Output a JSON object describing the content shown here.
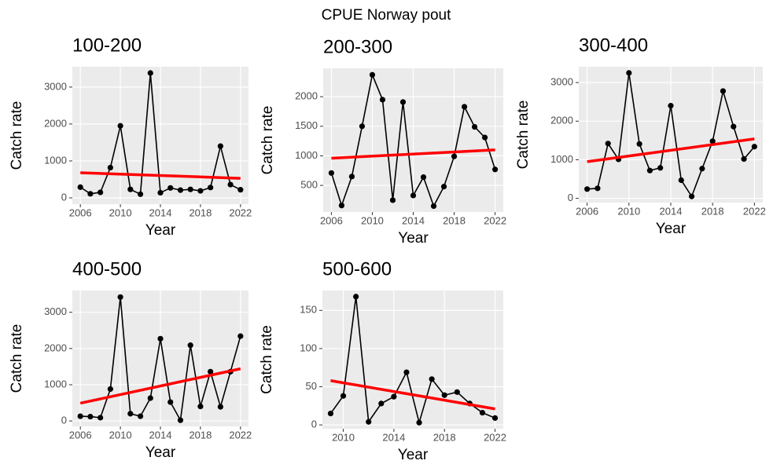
{
  "title": "CPUE Norway pout",
  "chart_data": [
    {
      "type": "line",
      "title": "100-200",
      "xlabel": "Year",
      "ylabel": "Catch rate",
      "x": [
        2006,
        2007,
        2008,
        2009,
        2010,
        2011,
        2012,
        2013,
        2014,
        2015,
        2016,
        2017,
        2018,
        2019,
        2020,
        2021,
        2022
      ],
      "series": [
        {
          "color": "#000000",
          "values": [
            290,
            110,
            150,
            820,
            1950,
            230,
            100,
            3380,
            140,
            270,
            210,
            230,
            190,
            280,
            1400,
            360,
            220
          ]
        }
      ],
      "trend": {
        "color": "#ff0000",
        "x": [
          2006,
          2022
        ],
        "values": [
          680,
          530
        ]
      },
      "xlim": [
        2005.2,
        2022.8
      ],
      "xticks": [
        2006,
        2010,
        2014,
        2018,
        2022
      ],
      "ylim": [
        -170,
        3550
      ],
      "yticks": [
        0,
        1000,
        2000,
        3000
      ],
      "grid": true
    },
    {
      "type": "line",
      "title": "200-300",
      "xlabel": "Year",
      "ylabel": "Catch rate",
      "x": [
        2006,
        2007,
        2008,
        2009,
        2010,
        2011,
        2012,
        2013,
        2014,
        2015,
        2016,
        2017,
        2018,
        2019,
        2020,
        2021,
        2022
      ],
      "series": [
        {
          "color": "#000000",
          "values": [
            710,
            160,
            650,
            1500,
            2370,
            1950,
            250,
            1910,
            330,
            640,
            150,
            480,
            990,
            1830,
            1490,
            1310,
            770
          ]
        }
      ],
      "trend": {
        "color": "#ff0000",
        "x": [
          2006,
          2022
        ],
        "values": [
          960,
          1100
        ]
      },
      "xlim": [
        2005.2,
        2022.8
      ],
      "xticks": [
        2006,
        2010,
        2014,
        2018,
        2022
      ],
      "ylim": [
        50,
        2480
      ],
      "yticks": [
        500,
        1000,
        1500,
        2000
      ],
      "grid": true
    },
    {
      "type": "line",
      "title": "300-400",
      "xlabel": "Year",
      "ylabel": "Catch rate",
      "x": [
        2006,
        2007,
        2008,
        2009,
        2010,
        2011,
        2012,
        2013,
        2014,
        2015,
        2016,
        2017,
        2018,
        2019,
        2020,
        2021,
        2022
      ],
      "series": [
        {
          "color": "#000000",
          "values": [
            240,
            260,
            1420,
            1010,
            3250,
            1410,
            720,
            790,
            2400,
            470,
            50,
            770,
            1480,
            2780,
            1860,
            1020,
            1340
          ]
        }
      ],
      "trend": {
        "color": "#ff0000",
        "x": [
          2006,
          2022
        ],
        "values": [
          950,
          1540
        ]
      },
      "xlim": [
        2005.2,
        2022.8
      ],
      "xticks": [
        2006,
        2010,
        2014,
        2018,
        2022
      ],
      "ylim": [
        -110,
        3410
      ],
      "yticks": [
        0,
        1000,
        2000,
        3000
      ],
      "grid": true
    },
    {
      "type": "line",
      "title": "400-500",
      "xlabel": "Year",
      "ylabel": "Catch rate",
      "x": [
        2006,
        2007,
        2008,
        2009,
        2010,
        2011,
        2012,
        2013,
        2014,
        2015,
        2016,
        2017,
        2018,
        2019,
        2020,
        2021,
        2022
      ],
      "series": [
        {
          "color": "#000000",
          "values": [
            130,
            120,
            90,
            880,
            3420,
            200,
            130,
            630,
            2270,
            520,
            20,
            2090,
            400,
            1360,
            390,
            1360,
            2340
          ]
        }
      ],
      "trend": {
        "color": "#ff0000",
        "x": [
          2006,
          2022
        ],
        "values": [
          490,
          1440
        ]
      },
      "xlim": [
        2005.2,
        2022.8
      ],
      "xticks": [
        2006,
        2010,
        2014,
        2018,
        2022
      ],
      "ylim": [
        -150,
        3600
      ],
      "yticks": [
        0,
        1000,
        2000,
        3000
      ],
      "grid": true
    },
    {
      "type": "line",
      "title": "500-600",
      "xlabel": "Year",
      "ylabel": "Catch rate",
      "x": [
        2009,
        2010,
        2011,
        2012,
        2013,
        2014,
        2015,
        2016,
        2017,
        2018,
        2019,
        2020,
        2021,
        2022
      ],
      "series": [
        {
          "color": "#000000",
          "values": [
            15,
            38,
            168,
            4,
            28,
            37,
            69,
            3,
            60,
            39,
            43,
            28,
            16,
            9
          ]
        }
      ],
      "trend": {
        "color": "#ff0000",
        "x": [
          2009,
          2022
        ],
        "values": [
          58,
          21
        ]
      },
      "xlim": [
        2008.35,
        2022.65
      ],
      "xticks": [
        2010,
        2014,
        2018,
        2022
      ],
      "ylim": [
        -5,
        176
      ],
      "yticks": [
        0,
        50,
        100,
        150
      ],
      "grid": true
    }
  ]
}
